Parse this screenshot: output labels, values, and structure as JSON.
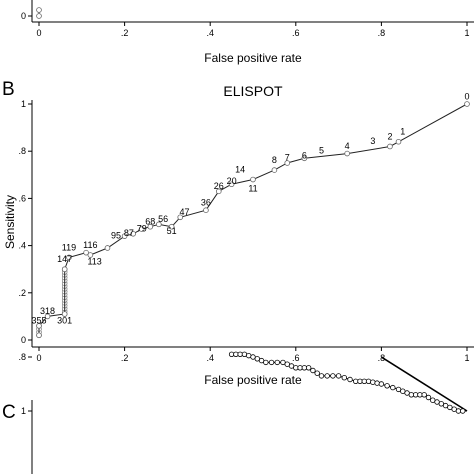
{
  "chart_data": [
    {
      "panel": "",
      "type": "line",
      "title": "",
      "xlabel": "False positive rate",
      "ylabel": "",
      "xlim": [
        0,
        1
      ],
      "x_ticks": [
        "0",
        ".2",
        ".4",
        ".6",
        ".8",
        "1"
      ],
      "y_ticks": [
        "0"
      ],
      "grid": false,
      "series": [
        {
          "x": [
            0,
            0
          ],
          "y": [
            0,
            0.02
          ]
        }
      ]
    },
    {
      "panel": "B",
      "type": "line",
      "title": "ELISPOT",
      "xlabel": "False positive rate",
      "ylabel": "Sensitivity",
      "xlim": [
        0,
        1
      ],
      "ylim": [
        0,
        1
      ],
      "x_ticks": [
        "0",
        ".2",
        ".4",
        ".6",
        ".8",
        "1"
      ],
      "y_ticks": [
        "0",
        ".2",
        ".4",
        ".6",
        ".8",
        "1"
      ],
      "grid": false,
      "series": [
        {
          "x": [
            0,
            0,
            0.02,
            0.06,
            0.06,
            0.07,
            0.11,
            0.12,
            0.16,
            0.2,
            0.22,
            0.24,
            0.26,
            0.28,
            0.31,
            0.33,
            0.39,
            0.42,
            0.45,
            0.5,
            0.55,
            0.58,
            0.62,
            0.72,
            0.82,
            0.84,
            1.0
          ],
          "y": [
            0.02,
            0.06,
            0.1,
            0.11,
            0.3,
            0.35,
            0.37,
            0.36,
            0.39,
            0.44,
            0.45,
            0.47,
            0.48,
            0.49,
            0.48,
            0.52,
            0.55,
            0.63,
            0.66,
            0.68,
            0.72,
            0.75,
            0.77,
            0.79,
            0.82,
            0.84,
            1.0
          ]
        }
      ],
      "annotations": [
        {
          "text": "355",
          "x": 0.0,
          "y": 0.07
        },
        {
          "text": "318",
          "x": 0.02,
          "y": 0.11
        },
        {
          "text": "301",
          "x": 0.06,
          "y": 0.07
        },
        {
          "text": "147",
          "x": 0.06,
          "y": 0.33
        },
        {
          "text": "119",
          "x": 0.07,
          "y": 0.38
        },
        {
          "text": "116",
          "x": 0.12,
          "y": 0.39
        },
        {
          "text": "113",
          "x": 0.13,
          "y": 0.32
        },
        {
          "text": "95",
          "x": 0.18,
          "y": 0.43
        },
        {
          "text": "87",
          "x": 0.21,
          "y": 0.44
        },
        {
          "text": "79",
          "x": 0.24,
          "y": 0.46
        },
        {
          "text": "68",
          "x": 0.26,
          "y": 0.49
        },
        {
          "text": "56",
          "x": 0.29,
          "y": 0.5
        },
        {
          "text": "51",
          "x": 0.31,
          "y": 0.45
        },
        {
          "text": "47",
          "x": 0.34,
          "y": 0.53
        },
        {
          "text": "36",
          "x": 0.39,
          "y": 0.57
        },
        {
          "text": "26",
          "x": 0.42,
          "y": 0.64
        },
        {
          "text": "20",
          "x": 0.45,
          "y": 0.66
        },
        {
          "text": "14",
          "x": 0.47,
          "y": 0.71
        },
        {
          "text": "11",
          "x": 0.5,
          "y": 0.63
        },
        {
          "text": "8",
          "x": 0.55,
          "y": 0.75
        },
        {
          "text": "7",
          "x": 0.58,
          "y": 0.76
        },
        {
          "text": "6",
          "x": 0.62,
          "y": 0.77
        },
        {
          "text": "5",
          "x": 0.66,
          "y": 0.79
        },
        {
          "text": "4",
          "x": 0.72,
          "y": 0.81
        },
        {
          "text": "3",
          "x": 0.78,
          "y": 0.83
        },
        {
          "text": "2",
          "x": 0.82,
          "y": 0.85
        },
        {
          "text": "1",
          "x": 0.85,
          "y": 0.87
        },
        {
          "text": "0",
          "x": 1.0,
          "y": 1.02
        }
      ]
    },
    {
      "panel": "C",
      "type": "line",
      "title": "",
      "xlabel": "",
      "ylabel": "",
      "ylim": [
        0,
        1
      ],
      "y_ticks": [
        ".8",
        "1"
      ],
      "grid": false,
      "series": [
        {
          "x": [
            0.45,
            0.48,
            0.5,
            0.53,
            0.57,
            0.6,
            0.63,
            0.66,
            0.7,
            0.74,
            0.77,
            0.8,
            0.84,
            0.87,
            0.9,
            0.92,
            0.95,
            0.98,
            1.0
          ],
          "y": [
            0.79,
            0.79,
            0.8,
            0.82,
            0.82,
            0.84,
            0.84,
            0.87,
            0.87,
            0.89,
            0.89,
            0.9,
            0.92,
            0.94,
            0.94,
            0.96,
            0.98,
            1.0,
            1.0
          ]
        },
        {
          "x": [
            0.8,
            1.0
          ],
          "y": [
            0.8,
            1.0
          ]
        }
      ]
    }
  ]
}
